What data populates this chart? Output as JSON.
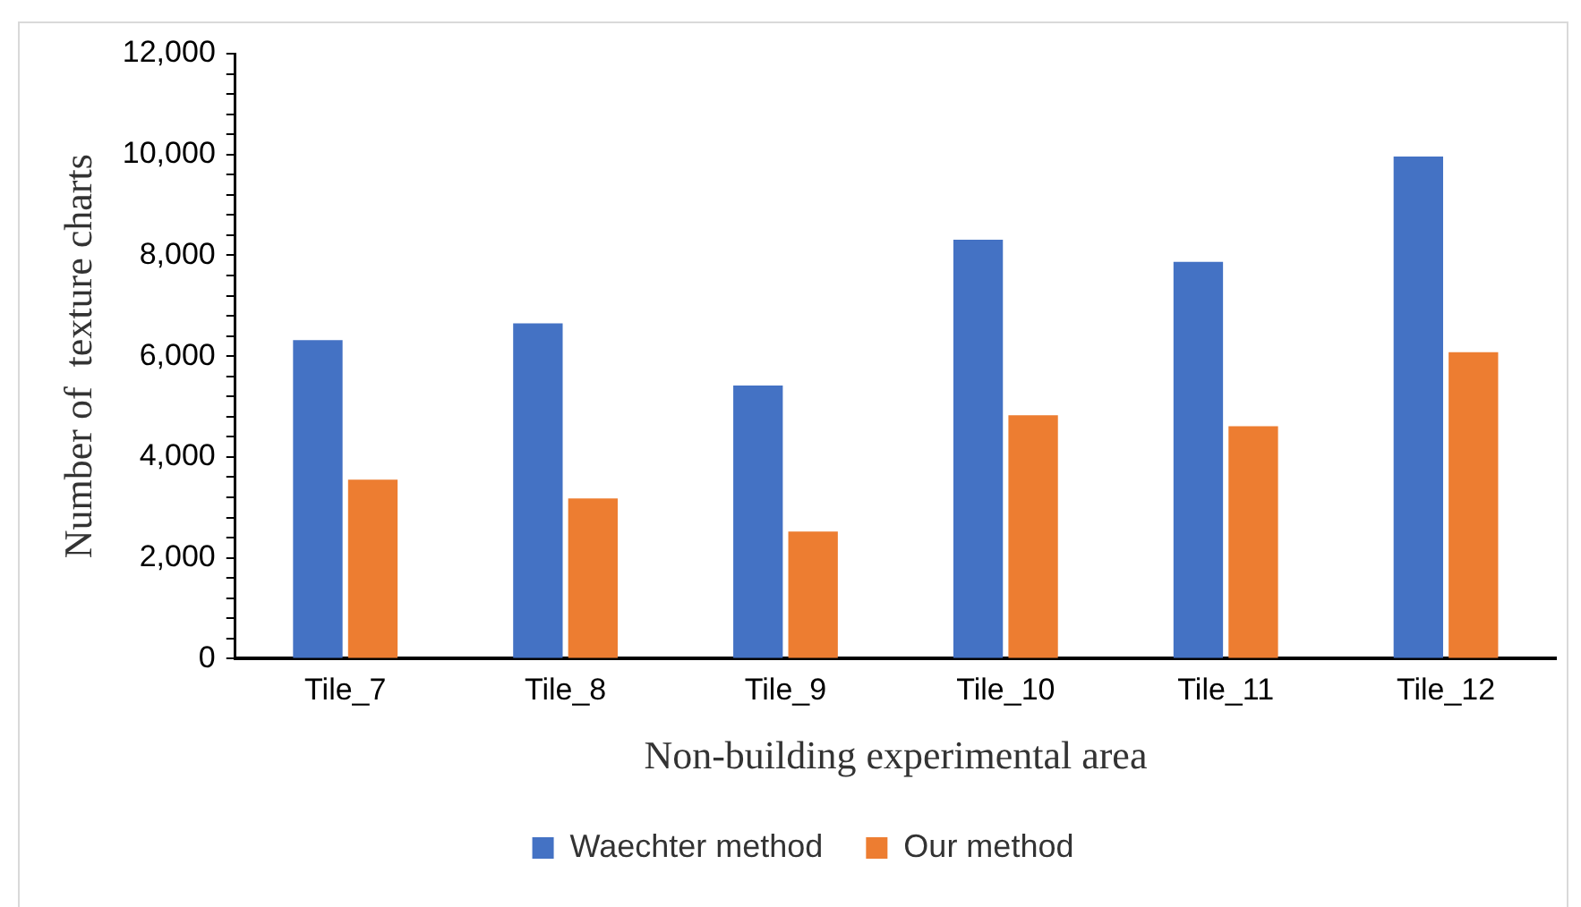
{
  "chart_data": {
    "type": "bar",
    "xlabel": "Non-building experimental area",
    "ylabel": "Number of  texture charts",
    "categories": [
      "Tile_7",
      "Tile_8",
      "Tile_9",
      "Tile_10",
      "Tile_11",
      "Tile_12"
    ],
    "series": [
      {
        "name": "Waechter method",
        "color": "#4472c4",
        "values": [
          6320,
          6650,
          5420,
          8310,
          7870,
          9960
        ]
      },
      {
        "name": "Our method",
        "color": "#ed7d31",
        "values": [
          3550,
          3180,
          2520,
          4830,
          4610,
          6080
        ]
      }
    ],
    "ylim": [
      0,
      12000
    ],
    "yticks": [
      0,
      {
        "value": 400,
        "label": null
      },
      {
        "value": 800,
        "label": null
      },
      {
        "value": 1200,
        "label": null
      },
      {
        "value": 1600,
        "label": null
      },
      {
        "value": 2000,
        "label": "2,000"
      },
      {
        "value": 2400,
        "label": null
      },
      {
        "value": 2800,
        "label": null
      },
      {
        "value": 3200,
        "label": null
      },
      {
        "value": 3600,
        "label": null
      },
      {
        "value": 4000,
        "label": "4,000"
      },
      {
        "value": 4400,
        "label": null
      },
      {
        "value": 4800,
        "label": null
      },
      {
        "value": 5200,
        "label": null
      },
      {
        "value": 5600,
        "label": null
      },
      {
        "value": 6000,
        "label": "6,000"
      },
      {
        "value": 6400,
        "label": null
      },
      {
        "value": 6800,
        "label": null
      },
      {
        "value": 7200,
        "label": null
      },
      {
        "value": 7600,
        "label": null
      },
      {
        "value": 8000,
        "label": "8,000"
      },
      {
        "value": 8400,
        "label": null
      },
      {
        "value": 8800,
        "label": null
      },
      {
        "value": 9200,
        "label": null
      },
      {
        "value": 9600,
        "label": null
      },
      {
        "value": 10000,
        "label": "10,000"
      },
      {
        "value": 10400,
        "label": null
      },
      {
        "value": 10800,
        "label": null
      },
      {
        "value": 11200,
        "label": null
      },
      {
        "value": 11600,
        "label": null
      },
      {
        "value": 12000,
        "label": "12,000"
      }
    ],
    "grid": false,
    "legend": "bottom"
  }
}
